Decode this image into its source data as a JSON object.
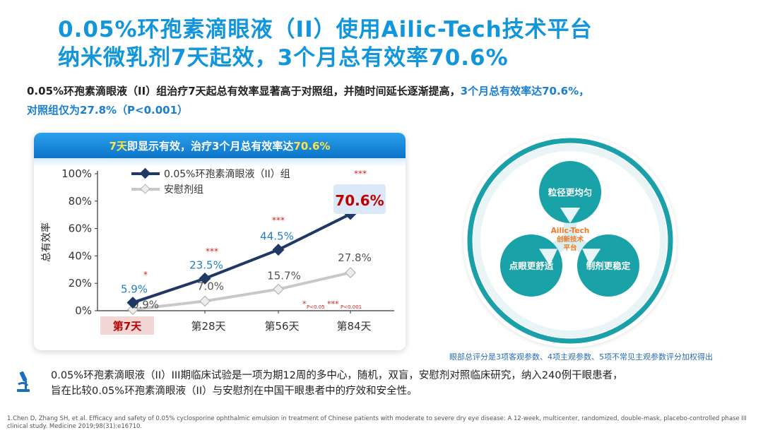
{
  "title": {
    "line1": "0.05%环孢素滴眼液（II）使用Ailic-Tech技术平台",
    "line2": "纳米微乳剂7天起效，3个月总有效率70.6%"
  },
  "subtitle": {
    "part1": "0.05%环孢素滴眼液（II）组治疗7天起总有效率显著高于对照组，并随时间延长逐渐提高，",
    "part2": "3个月总有效率达70.6%，",
    "part3": "对照组仅为27.8%（P<0.001）"
  },
  "banner": {
    "highlight1": "7天",
    "text1": "即显示有效，治疗3个月总有效率达",
    "highlight2": "70.6%"
  },
  "chart_data": {
    "type": "line",
    "categories": [
      "第7天",
      "第28天",
      "第56天",
      "第84天"
    ],
    "series": [
      {
        "name": "0.05%环孢素滴眼液（II）组",
        "values": [
          5.9,
          23.5,
          44.5,
          70.6
        ],
        "labels": [
          "5.9%",
          "23.5%",
          "44.5%",
          "70.6%"
        ],
        "color": "#1f3864"
      },
      {
        "name": "安慰剂组",
        "values": [
          0.9,
          7.0,
          15.7,
          27.8
        ],
        "labels": [
          "0.9%",
          "7.0%",
          "15.7%",
          "27.8%"
        ],
        "color": "#c8c8c8"
      }
    ],
    "significance": [
      "*",
      "***",
      "***",
      "***"
    ],
    "ylabel": "总有效率",
    "yticks": [
      "0%",
      "20%",
      "40%",
      "60%",
      "80%",
      "100%"
    ],
    "ylim": [
      0,
      100
    ],
    "legend_position": "top",
    "footnote": {
      "star1": "*",
      "text1": "P<0.05",
      "star3": "***",
      "text3": "P<0.001"
    },
    "label_color": "#1e7ec8",
    "highlight_color": "#c00000",
    "grid": false
  },
  "diagram": {
    "center": [
      "Ailic-Tech",
      "创新技术",
      "平台"
    ],
    "nodes": [
      "粒径更均匀",
      "点眼更舒适",
      "制剂更稳定"
    ],
    "node_color": "#19a3a8",
    "center_color": "#f07a22"
  },
  "diagram_note": "眼部总评分是3项客观参数、4项主观参数、5项不常见主观参数评分加权得出",
  "study": {
    "line1": "0.05%环孢素滴眼液（II）III期临床试验是一项为期12周的多中心，随机，双盲，安慰剂对照临床研究，纳入240例干眼患者，",
    "line2": "旨在比较0.05%环孢素滴眼液（II）与安慰剂在中国干眼患者中的疗效和安全性。",
    "icon": "microscope-icon"
  },
  "reference": "1.Chen D, Zhang SH, et al. Efficacy and safety of 0.05% cyclosporine ophthalmic emulsion in treatment of Chinese patients with moderate to severe dry eye disease: A 12-week, multicenter, randomized, double-mask, placebo-controlled phase III clinical study. Medicine 2019;98(31):e16710."
}
